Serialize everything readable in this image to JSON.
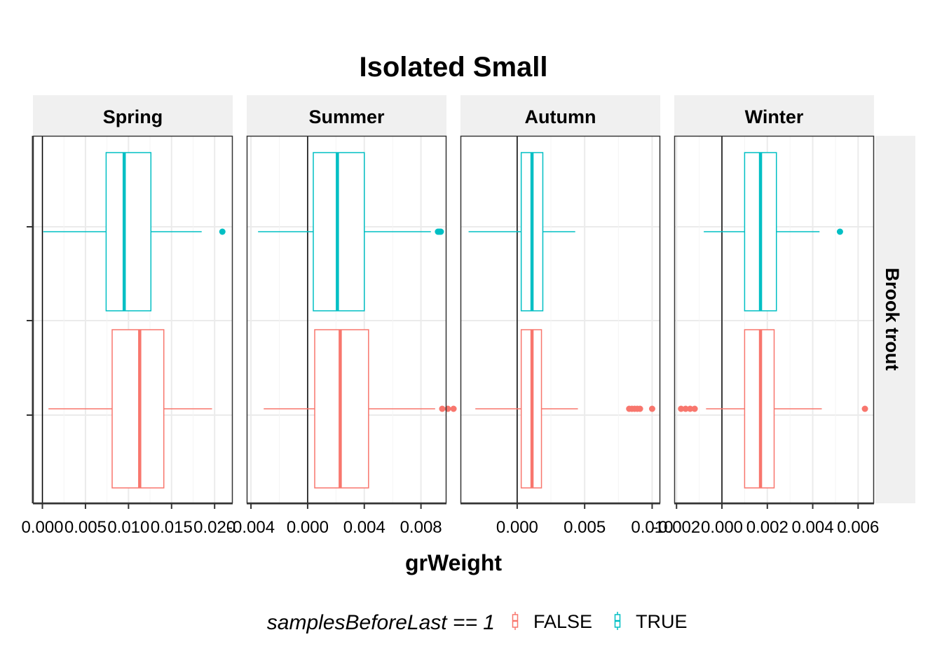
{
  "chart_data": {
    "type": "boxplot",
    "title": "Isolated Small",
    "xlabel": "grWeight",
    "ylabel": "",
    "grid": true,
    "row_strip": "Brook trout",
    "legend": {
      "title": "samplesBeforeLast == 1",
      "position": "bottom",
      "entries": [
        {
          "label": "FALSE",
          "color": "#F8766D"
        },
        {
          "label": "TRUE",
          "color": "#00BFC4"
        }
      ]
    },
    "panels": [
      {
        "name": "Spring",
        "xlim": [
          -0.0011,
          0.0221
        ],
        "ticks": [
          0.0,
          0.005,
          0.01,
          0.015,
          0.02
        ],
        "tick_labels": [
          "0.000",
          "0.005",
          "0.010",
          "0.015",
          "0.020"
        ],
        "boxes": {
          "TRUE": {
            "lower": 0.0001,
            "q1": 0.0074,
            "median": 0.0095,
            "q3": 0.0126,
            "upper": 0.0185,
            "outliers": [
              0.0209
            ]
          },
          "FALSE": {
            "lower": 0.0007,
            "q1": 0.0081,
            "median": 0.0113,
            "q3": 0.0141,
            "upper": 0.0197,
            "outliers": []
          }
        }
      },
      {
        "name": "Summer",
        "xlim": [
          -0.0043,
          0.0098
        ],
        "ticks": [
          -0.004,
          0.0,
          0.004,
          0.008
        ],
        "tick_labels": [
          "-0.004",
          "0.000",
          "0.004",
          "0.008"
        ],
        "boxes": {
          "TRUE": {
            "lower": -0.0035,
            "q1": 0.0004,
            "median": 0.0021,
            "q3": 0.004,
            "upper": 0.0087,
            "outliers": [
              0.0092,
              0.0093,
              0.0094
            ]
          },
          "FALSE": {
            "lower": -0.0031,
            "q1": 0.0005,
            "median": 0.0023,
            "q3": 0.0043,
            "upper": 0.009,
            "outliers": [
              0.0095,
              0.0099,
              0.0103
            ]
          }
        }
      },
      {
        "name": "Autumn",
        "xlim": [
          -0.0042,
          0.0106
        ],
        "ticks": [
          0.0,
          0.005,
          0.01
        ],
        "tick_labels": [
          "0.000",
          "0.005",
          "0.010"
        ],
        "boxes": {
          "TRUE": {
            "lower": -0.0036,
            "q1": 0.0003,
            "median": 0.0011,
            "q3": 0.0019,
            "upper": 0.0043,
            "outliers": []
          },
          "FALSE": {
            "lower": -0.0031,
            "q1": 0.0003,
            "median": 0.0011,
            "q3": 0.0018,
            "upper": 0.0045,
            "outliers": [
              0.0083,
              0.0085,
              0.0087,
              0.0089,
              0.0091,
              0.01
            ]
          }
        }
      },
      {
        "name": "Winter",
        "xlim": [
          -0.0021,
          0.0067
        ],
        "ticks": [
          -0.002,
          0.0,
          0.002,
          0.004,
          0.006
        ],
        "tick_labels": [
          "-0.002",
          "0.000",
          "0.002",
          "0.004",
          "0.006"
        ],
        "boxes": {
          "TRUE": {
            "lower": -0.0008,
            "q1": 0.001,
            "median": 0.0017,
            "q3": 0.0024,
            "upper": 0.0043,
            "outliers": [
              0.0052
            ]
          },
          "FALSE": {
            "lower": -0.0007,
            "q1": 0.001,
            "median": 0.0017,
            "q3": 0.0023,
            "upper": 0.0044,
            "outliers": [
              -0.0018,
              -0.0016,
              -0.0014,
              -0.0012,
              0.0063
            ]
          }
        }
      }
    ]
  }
}
